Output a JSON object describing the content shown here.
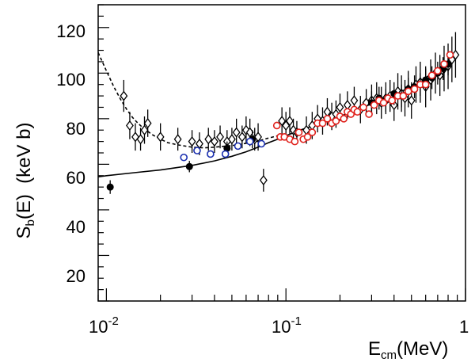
{
  "chart_data": {
    "type": "scatter",
    "xscale": "log",
    "xlim": [
      0.009,
      1.0
    ],
    "ylim": [
      0,
      130
    ],
    "grid": false,
    "legend": "none",
    "x_tick_labels": {
      "10^-2": "10",
      "10^-1": "10",
      "10^0": "1",
      "exp_minus2": "-2",
      "exp_minus1": "-1"
    },
    "y_ticks": [
      "20",
      "40",
      "60",
      "80",
      "100",
      "120"
    ],
    "xlabel": {
      "main": "E",
      "sub": "cm",
      "unit": "(MeV)"
    },
    "ylabel": {
      "main": "S",
      "sub": "b",
      "rest": "(E)  (keV b)"
    },
    "colors": {
      "diamonds": "#000000",
      "filled": "#000000",
      "blue": "#1a2fb0",
      "red": "#e0201b"
    },
    "series": [
      {
        "marker": "open-diamond",
        "x": [
          0.0125,
          0.0135,
          0.0145,
          0.0155,
          0.0163,
          0.017,
          0.02,
          0.025,
          0.03,
          0.033,
          0.037,
          0.04,
          0.043,
          0.047,
          0.05,
          0.053,
          0.057,
          0.06,
          0.063,
          0.067,
          0.07,
          0.075,
          0.095,
          0.1,
          0.105,
          0.11,
          0.115,
          0.13,
          0.14,
          0.15,
          0.16,
          0.17,
          0.18,
          0.19,
          0.2,
          0.22,
          0.24,
          0.26,
          0.28,
          0.3,
          0.32,
          0.34,
          0.36,
          0.38,
          0.4,
          0.42,
          0.44,
          0.46,
          0.48,
          0.5,
          0.53,
          0.56,
          0.6,
          0.64,
          0.68,
          0.72,
          0.76,
          0.8,
          0.84,
          0.88
        ],
        "y": [
          90,
          77,
          72,
          71,
          75,
          78,
          72,
          71,
          70,
          69,
          71,
          70,
          72,
          70,
          71,
          74,
          72,
          75,
          74,
          71,
          72,
          53,
          79,
          77,
          79,
          75,
          74,
          75,
          77,
          80,
          79,
          83,
          81,
          82,
          85,
          86,
          88,
          84,
          87,
          88,
          89,
          87,
          89,
          90,
          86,
          92,
          91,
          89,
          93,
          88,
          95,
          96,
          94,
          97,
          100,
          99,
          102,
          103,
          106,
          108
        ],
        "err": [
          7,
          6,
          6,
          5,
          6,
          6,
          6,
          5,
          5,
          5,
          5,
          5,
          5,
          5,
          5,
          6,
          5,
          6,
          6,
          5,
          6,
          5,
          6,
          6,
          6,
          5,
          5,
          6,
          6,
          6,
          6,
          6,
          6,
          6,
          6,
          6,
          6,
          6,
          6,
          7,
          7,
          7,
          7,
          7,
          7,
          8,
          8,
          8,
          8,
          8,
          8,
          9,
          9,
          9,
          9,
          9,
          10,
          10,
          10,
          10
        ]
      },
      {
        "marker": "filled-circle",
        "x": [
          0.0105,
          0.029,
          0.047,
          0.065,
          0.3,
          0.33,
          0.36,
          0.4,
          0.44,
          0.48,
          0.52,
          0.56,
          0.6,
          0.65,
          0.7,
          0.75,
          0.8
        ],
        "y": [
          50,
          59,
          67,
          71,
          87,
          89,
          88,
          91,
          90,
          93,
          94,
          95,
          97,
          98,
          100,
          102,
          104
        ],
        "err": [
          3,
          2.5,
          3,
          4,
          5,
          5,
          5,
          5,
          5,
          5,
          5,
          5,
          5,
          5,
          5,
          5,
          5
        ]
      },
      {
        "marker": "open-circle",
        "color": "blue",
        "x": [
          0.027,
          0.032,
          0.038,
          0.046,
          0.054,
          0.063,
          0.073
        ],
        "y": [
          63,
          66,
          64.5,
          64.5,
          68,
          70,
          69
        ],
        "err": [
          1.5,
          1.5,
          1.5,
          1.5,
          1.5,
          1.5,
          1.5
        ]
      },
      {
        "marker": "open-circle",
        "color": "red",
        "x": [
          0.089,
          0.093,
          0.098,
          0.105,
          0.112,
          0.118,
          0.125,
          0.132,
          0.14,
          0.15,
          0.16,
          0.17,
          0.18,
          0.19,
          0.2,
          0.21,
          0.22,
          0.23,
          0.24,
          0.25,
          0.27,
          0.29,
          0.31,
          0.33,
          0.35,
          0.37,
          0.39,
          0.42,
          0.45,
          0.48,
          0.52,
          0.56,
          0.6,
          0.65,
          0.7,
          0.76,
          0.82
        ],
        "y": [
          77,
          72,
          72,
          71,
          70,
          74,
          71,
          72,
          74,
          78,
          78,
          80,
          78,
          79,
          81,
          80,
          83,
          82,
          84,
          83,
          85,
          82,
          86,
          88,
          87,
          89,
          88,
          90,
          90,
          92,
          93,
          95,
          95,
          99,
          101,
          104,
          108
        ],
        "err": [
          1.5,
          1.5,
          1.5,
          1.5,
          1.5,
          1.5,
          1.5,
          1.5,
          1.5,
          1.5,
          1.5,
          1.5,
          1.5,
          1.5,
          1.5,
          1.5,
          1.5,
          1.5,
          1.5,
          1.5,
          1.5,
          1.5,
          1.5,
          1.5,
          1.5,
          1.5,
          1.5,
          1.5,
          1.5,
          1.5,
          1.5,
          1.5,
          1.5,
          1.5,
          1.5,
          1.5,
          1.5
        ]
      }
    ],
    "curves": [
      {
        "style": "solid",
        "x": [
          0.009,
          0.01,
          0.015,
          0.02,
          0.03,
          0.04,
          0.05,
          0.06,
          0.07,
          0.08,
          0.09,
          0.1,
          0.12,
          0.15,
          0.2,
          0.25,
          0.3,
          0.35,
          0.4,
          0.5,
          0.6,
          0.7,
          0.8,
          0.9
        ],
        "y": [
          54.5,
          55,
          56.5,
          57.5,
          59.5,
          61.5,
          63.5,
          65.5,
          67.5,
          69.5,
          71,
          72.5,
          75,
          77.5,
          81,
          84,
          86.5,
          88.5,
          90.5,
          94,
          98,
          101.5,
          105,
          109
        ]
      },
      {
        "style": "dashed",
        "x": [
          0.009,
          0.01,
          0.011,
          0.012,
          0.013,
          0.014,
          0.015,
          0.016,
          0.018,
          0.02,
          0.022,
          0.025,
          0.03,
          0.035,
          0.04,
          0.05,
          0.06,
          0.07,
          0.08,
          0.09,
          0.1
        ],
        "y": [
          109,
          101,
          94,
          88.5,
          84,
          80.5,
          78,
          76,
          73,
          71,
          69.5,
          68.5,
          67.5,
          67.2,
          67.5,
          68.2,
          69.2,
          70.2,
          71.5,
          72.5,
          73.5
        ]
      }
    ]
  }
}
